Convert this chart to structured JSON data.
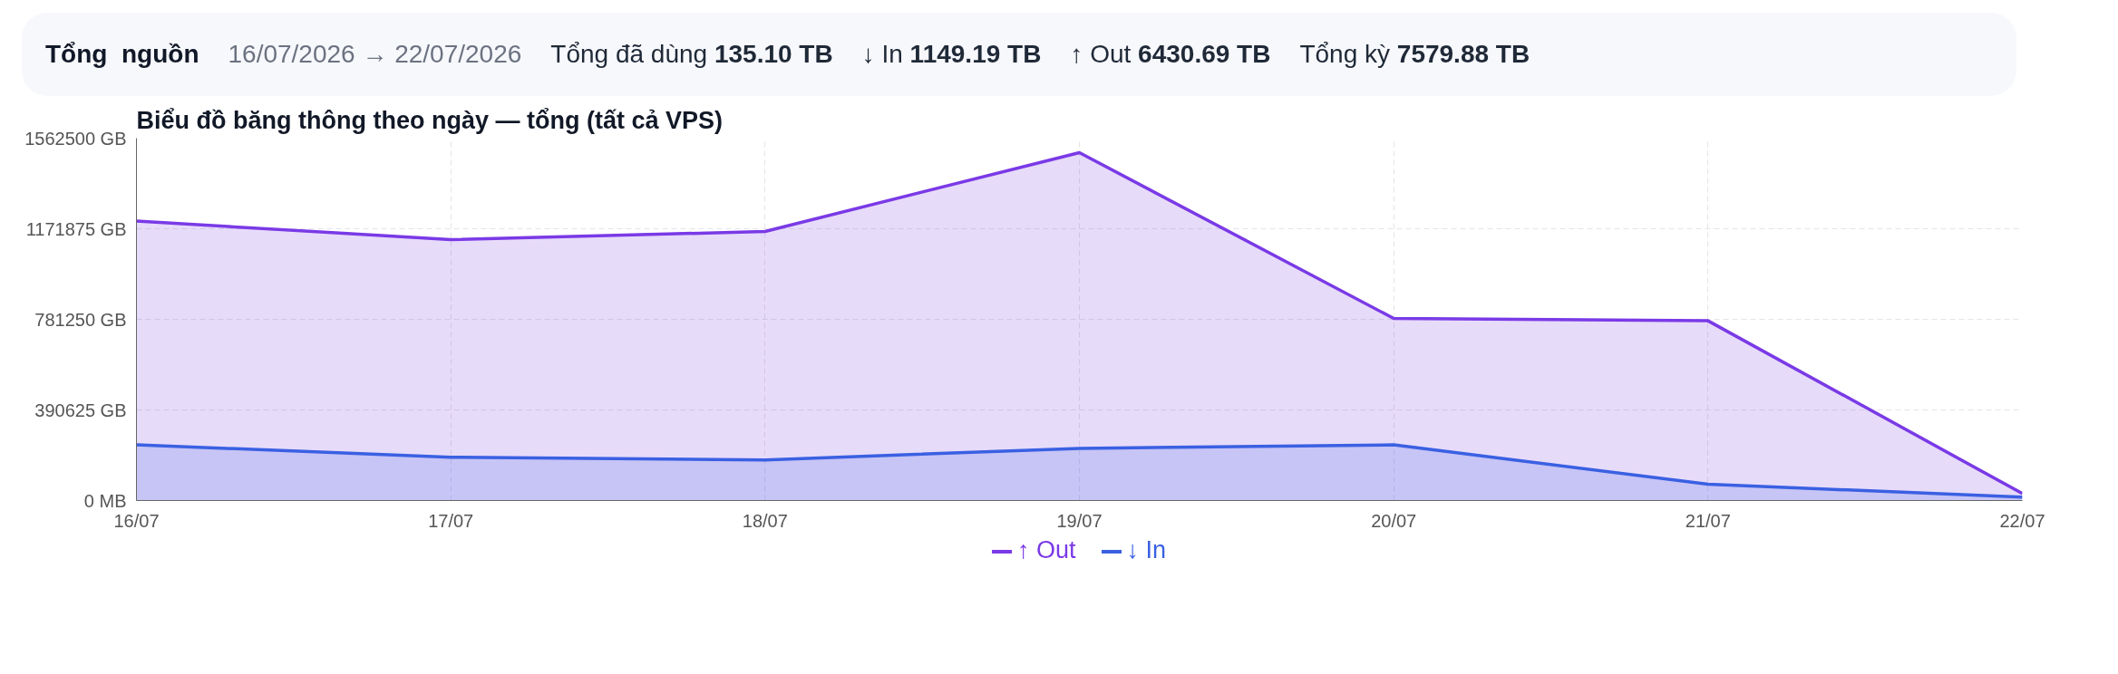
{
  "chart_data": {
    "type": "area",
    "title": "Biểu đồ băng thông theo ngày — tổng (tất cả VPS)",
    "annotations": [
      "Tổng  nguồn",
      "16/07/2026 → 22/07/2026",
      "Tổng đã dùng 135.10 TB",
      "↓ In 1149.19 TB",
      "↑ Out 6430.69 TB",
      "Tổng kỳ 7579.88 TB"
    ],
    "x": [
      "2026-07-16",
      "2026-07-17",
      "2026-07-18",
      "2026-07-19",
      "2026-07-20",
      "2026-07-21",
      "2026-07-22"
    ],
    "series": [
      {
        "name": "↑ Out",
        "color": "#7a3ae6",
        "values": [
          1205000,
          1125000,
          1160000,
          1500000,
          785000,
          775000,
          30000
        ]
      },
      {
        "name": "↓ In",
        "color": "#3a60e2",
        "values": [
          240000,
          187000,
          175000,
          225000,
          240000,
          70000,
          15000
        ]
      }
    ],
    "xlim": [
      "2026-07-16",
      "2026-07-22"
    ],
    "xticks": [
      {
        "value": "2026-07-16",
        "label": "16/07"
      },
      {
        "value": "2026-07-17",
        "label": "17/07"
      },
      {
        "value": "2026-07-18",
        "label": "18/07"
      },
      {
        "value": "2026-07-19",
        "label": "19/07"
      },
      {
        "value": "2026-07-20",
        "label": "20/07"
      },
      {
        "value": "2026-07-21",
        "label": "21/07"
      },
      {
        "value": "2026-07-22",
        "label": "22/07"
      }
    ],
    "ylim": [
      0,
      1562500
    ],
    "yticks": [
      {
        "value": 0,
        "label": "0 MB"
      },
      {
        "value": 390625,
        "label": "390625 GB"
      },
      {
        "value": 781250,
        "label": "781250 GB"
      },
      {
        "value": 1171875,
        "label": "1171875 GB"
      },
      {
        "value": 1562500,
        "label": "1562500 GB"
      }
    ],
    "grid": true,
    "legend": "bottom",
    "marker": "none",
    "line_style": "solid"
  }
}
